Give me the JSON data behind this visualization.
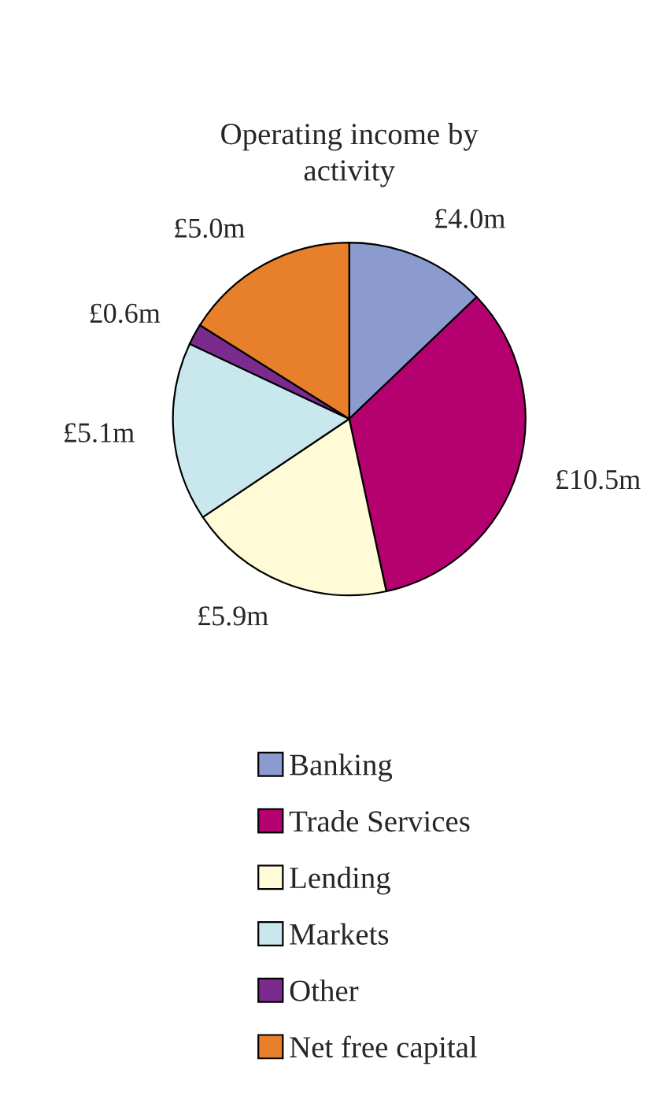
{
  "chart_data": {
    "type": "pie",
    "title": "Operating income by\nactivity",
    "categories": [
      "Banking",
      "Trade Services",
      "Lending",
      "Markets",
      "Other",
      "Net free capital"
    ],
    "values": [
      4.0,
      10.5,
      5.9,
      5.1,
      0.6,
      5.0
    ],
    "value_labels": [
      "£4.0m",
      "£10.5m",
      "£5.9m",
      "£5.1m",
      "£0.6m",
      "£5.0m"
    ],
    "colors": [
      "#8b9bd0",
      "#b5006f",
      "#fffbd6",
      "#c8e8ee",
      "#7b2a8e",
      "#e87f2a"
    ],
    "legend": "bottom"
  }
}
